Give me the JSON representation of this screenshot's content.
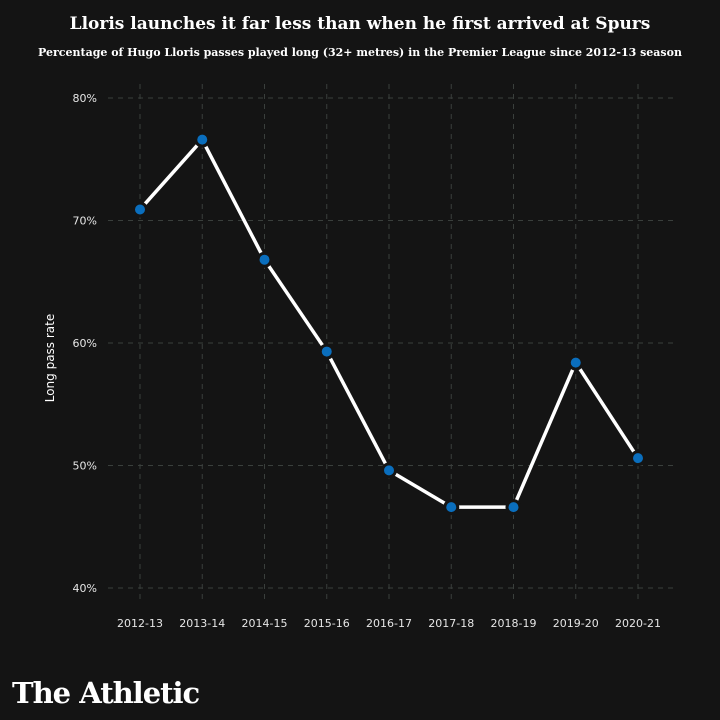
{
  "chart_data": {
    "type": "line",
    "title": "Lloris launches it far less than when he first arrived at Spurs",
    "subtitle": "Percentage of Hugo Lloris passes played long (32+ metres) in the Premier League since 2012-13 season",
    "xlabel": "",
    "ylabel": "Long pass rate",
    "categories": [
      "2012-13",
      "2013-14",
      "2014-15",
      "2015-16",
      "2016-17",
      "2017-18",
      "2018-19",
      "2019-20",
      "2020-21"
    ],
    "series": [
      {
        "name": "Long pass rate",
        "values": [
          70.9,
          76.6,
          66.8,
          59.3,
          49.6,
          46.6,
          46.6,
          58.4,
          50.6
        ]
      }
    ],
    "ylim": [
      40,
      80
    ],
    "yticks": [
      40,
      50,
      60,
      70,
      80
    ],
    "ytick_labels": [
      "40%",
      "50%",
      "60%",
      "70%",
      "80%"
    ],
    "grid": true,
    "colors": {
      "line": "#ffffff",
      "marker": "#0a6ebd",
      "grid": "#3a3f3c",
      "background": "#141414"
    }
  },
  "brand": "The Athletic"
}
